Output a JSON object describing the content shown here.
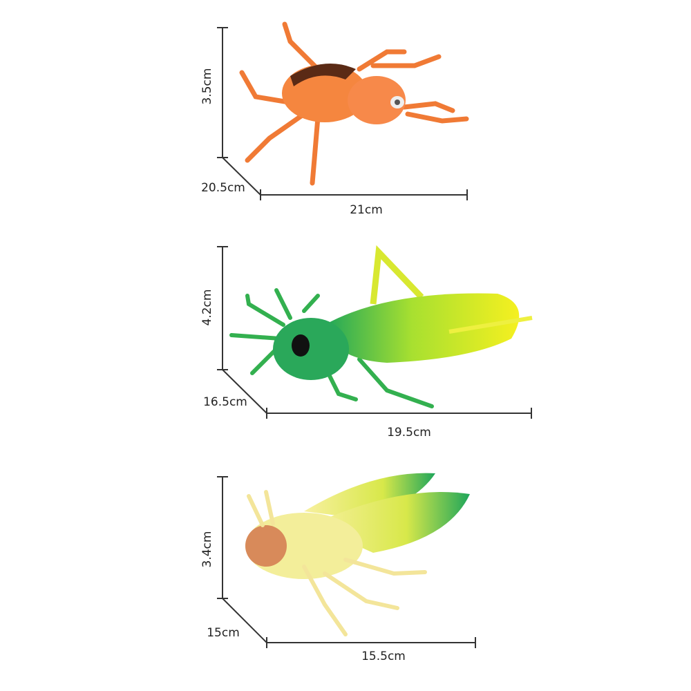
{
  "items": [
    {
      "height": "3.5cm",
      "depth": "20.5cm",
      "width": "21cm"
    },
    {
      "height": "4.2cm",
      "depth": "16.5cm",
      "width": "19.5cm"
    },
    {
      "height": "3.4cm",
      "depth": "15cm",
      "width": "15.5cm"
    }
  ]
}
